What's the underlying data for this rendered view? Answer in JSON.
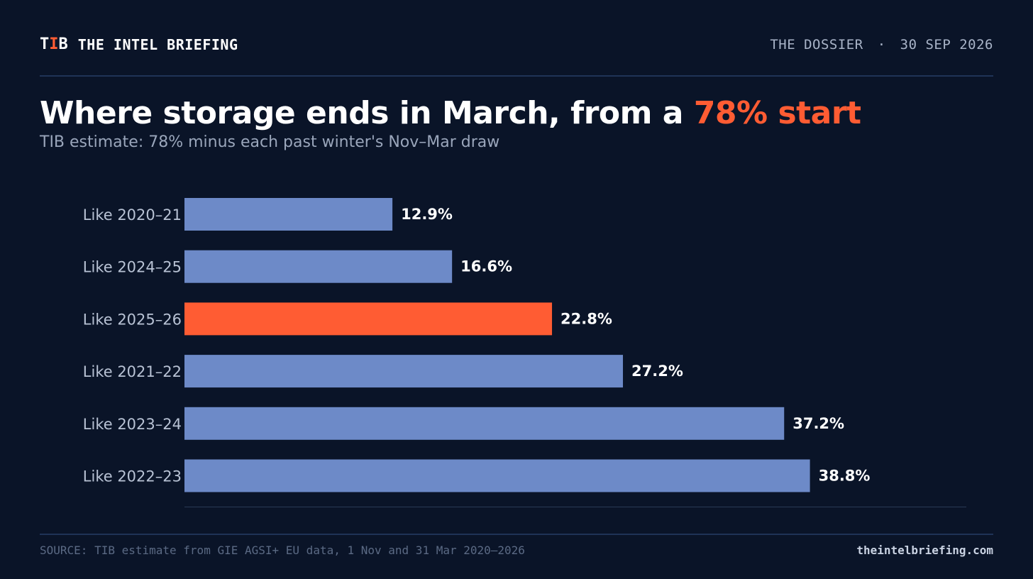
{
  "header": {
    "logo": {
      "part1": "T",
      "part2": "I",
      "part3": "B"
    },
    "brand_name": "THE INTEL BRIEFING",
    "section": "THE DOSSIER",
    "separator": "·",
    "date": "30 SEP 2026"
  },
  "headline": {
    "main": "Where storage ends in March, from a ",
    "highlight": "78% start",
    "subtitle": "TIB estimate: 78% minus each past winter's Nov–Mar draw"
  },
  "colors": {
    "background": "#0a1428",
    "bar": "#6d8ac8",
    "highlight_bar": "#ff5c33",
    "label": "#b8c2d4",
    "value_label": "#ffffff",
    "axis": "#2a3a56"
  },
  "chart_data": {
    "type": "bar",
    "orientation": "horizontal",
    "categories": [
      "Like 2020–21",
      "Like 2024–25",
      "Like 2025–26",
      "Like 2021–22",
      "Like 2023–24",
      "Like 2022–23"
    ],
    "values": [
      12.9,
      16.6,
      22.8,
      27.2,
      37.2,
      38.8
    ],
    "value_labels": [
      "12.9%",
      "16.6%",
      "22.8%",
      "27.2%",
      "37.2%",
      "38.8%"
    ],
    "highlight_index": 2,
    "xlim": [
      0,
      48.5
    ],
    "grid": false,
    "legend": "none"
  },
  "footer": {
    "source": "SOURCE: TIB estimate from GIE AGSI+ EU data, 1 Nov and 31 Mar 2020–2026",
    "site": "theintelbriefing.com"
  }
}
